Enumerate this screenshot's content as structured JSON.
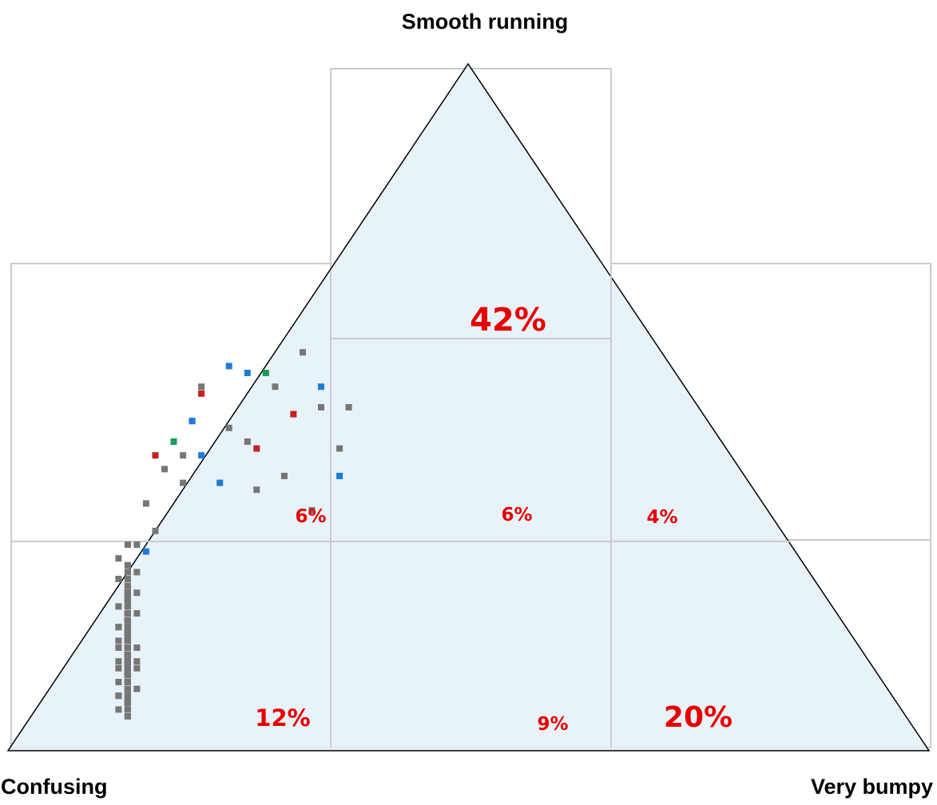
{
  "chart_data": {
    "type": "scatter",
    "subtype": "ternary",
    "corners": {
      "top": "Smooth running",
      "left": "Confusing",
      "right": "Very bumpy"
    },
    "region_percentages": {
      "top": "42%",
      "middle_left": "6%",
      "middle_center": "6%",
      "middle_right": "4%",
      "bottom_left": "12%",
      "bottom_center": "9%",
      "bottom_right": "20%"
    },
    "point_categories": [
      "gray",
      "blue",
      "red",
      "green"
    ],
    "colors": {
      "triangle_fill": "#e4f0f8",
      "triangle_stroke": "#000000",
      "grid": "#c6ccd2",
      "gray": "#767676",
      "blue": "#1e7bd8",
      "red": "#c81e1e",
      "green": "#1a9a55",
      "percent_text": "#e60000"
    },
    "points": [
      {
        "x": 0.13,
        "y": 0.74,
        "c": "gray"
      },
      {
        "x": 0.13,
        "y": 0.81,
        "c": "gray"
      },
      {
        "x": 0.13,
        "y": 0.92,
        "c": "gray"
      },
      {
        "x": 0.13,
        "y": 0.92,
        "c": "gray"
      },
      {
        "x": 0.13,
        "y": 0.89,
        "c": "gray"
      },
      {
        "x": 0.13,
        "y": 0.77,
        "c": "gray"
      },
      {
        "x": 0.13,
        "y": 0.8,
        "c": "gray"
      },
      {
        "x": 0.13,
        "y": 0.8,
        "c": "gray"
      },
      {
        "x": 0.13,
        "y": 0.95,
        "c": "gray"
      },
      {
        "x": 0.13,
        "y": 0.79,
        "c": "gray"
      },
      {
        "x": 0.13,
        "y": 0.84,
        "c": "gray"
      },
      {
        "x": 0.12,
        "y": 0.88,
        "c": "gray"
      },
      {
        "x": 0.13,
        "y": 0.9,
        "c": "gray"
      },
      {
        "x": 0.14,
        "y": 0.87,
        "c": "gray"
      },
      {
        "x": 0.13,
        "y": 0.77,
        "c": "gray"
      },
      {
        "x": 0.13,
        "y": 0.93,
        "c": "gray"
      },
      {
        "x": 0.13,
        "y": 0.78,
        "c": "gray"
      },
      {
        "x": 0.13,
        "y": 0.87,
        "c": "gray"
      },
      {
        "x": 0.13,
        "y": 0.9,
        "c": "gray"
      },
      {
        "x": 0.13,
        "y": 0.73,
        "c": "gray"
      },
      {
        "x": 0.13,
        "y": 0.93,
        "c": "gray"
      },
      {
        "x": 0.13,
        "y": 0.85,
        "c": "gray"
      },
      {
        "x": 0.12,
        "y": 0.92,
        "c": "gray"
      },
      {
        "x": 0.13,
        "y": 0.78,
        "c": "gray"
      },
      {
        "x": 0.13,
        "y": 0.92,
        "c": "gray"
      },
      {
        "x": 0.13,
        "y": 0.76,
        "c": "gray"
      },
      {
        "x": 0.13,
        "y": 0.8,
        "c": "gray"
      },
      {
        "x": 0.13,
        "y": 0.94,
        "c": "gray"
      },
      {
        "x": 0.12,
        "y": 0.79,
        "c": "gray"
      },
      {
        "x": 0.13,
        "y": 0.83,
        "c": "gray"
      },
      {
        "x": 0.13,
        "y": 0.94,
        "c": "gray"
      },
      {
        "x": 0.13,
        "y": 0.86,
        "c": "gray"
      },
      {
        "x": 0.13,
        "y": 0.84,
        "c": "gray"
      },
      {
        "x": 0.13,
        "y": 0.93,
        "c": "gray"
      },
      {
        "x": 0.13,
        "y": 0.86,
        "c": "gray"
      },
      {
        "x": 0.13,
        "y": 0.81,
        "c": "gray"
      },
      {
        "x": 0.13,
        "y": 0.78,
        "c": "gray"
      },
      {
        "x": 0.13,
        "y": 0.91,
        "c": "gray"
      },
      {
        "x": 0.13,
        "y": 0.82,
        "c": "gray"
      },
      {
        "x": 0.12,
        "y": 0.9,
        "c": "gray"
      },
      {
        "x": 0.13,
        "y": 0.86,
        "c": "gray"
      },
      {
        "x": 0.14,
        "y": 0.77,
        "c": "gray"
      },
      {
        "x": 0.13,
        "y": 0.73,
        "c": "gray"
      },
      {
        "x": 0.13,
        "y": 0.83,
        "c": "gray"
      },
      {
        "x": 0.12,
        "y": 0.82,
        "c": "gray"
      },
      {
        "x": 0.13,
        "y": 0.9,
        "c": "gray"
      },
      {
        "x": 0.13,
        "y": 0.85,
        "c": "gray"
      },
      {
        "x": 0.13,
        "y": 0.87,
        "c": "gray"
      },
      {
        "x": 0.13,
        "y": 0.88,
        "c": "gray"
      },
      {
        "x": 0.12,
        "y": 0.84,
        "c": "gray"
      },
      {
        "x": 0.13,
        "y": 0.83,
        "c": "gray"
      },
      {
        "x": 0.13,
        "y": 0.88,
        "c": "gray"
      },
      {
        "x": 0.13,
        "y": 0.76,
        "c": "gray"
      },
      {
        "x": 0.13,
        "y": 0.88,
        "c": "gray"
      },
      {
        "x": 0.13,
        "y": 0.84,
        "c": "gray"
      },
      {
        "x": 0.13,
        "y": 0.88,
        "c": "gray"
      },
      {
        "x": 0.13,
        "y": 0.79,
        "c": "gray"
      },
      {
        "x": 0.13,
        "y": 0.89,
        "c": "gray"
      },
      {
        "x": 0.13,
        "y": 0.77,
        "c": "gray"
      },
      {
        "x": 0.13,
        "y": 0.74,
        "c": "gray"
      },
      {
        "x": 0.13,
        "y": 0.82,
        "c": "gray"
      },
      {
        "x": 0.13,
        "y": 0.82,
        "c": "gray"
      },
      {
        "x": 0.13,
        "y": 0.89,
        "c": "gray"
      },
      {
        "x": 0.13,
        "y": 0.87,
        "c": "gray"
      },
      {
        "x": 0.13,
        "y": 0.94,
        "c": "gray"
      },
      {
        "x": 0.13,
        "y": 0.95,
        "c": "gray"
      },
      {
        "x": 0.13,
        "y": 0.79,
        "c": "gray"
      },
      {
        "x": 0.13,
        "y": 0.88,
        "c": "gray"
      },
      {
        "x": 0.13,
        "y": 0.85,
        "c": "gray"
      },
      {
        "x": 0.13,
        "y": 0.84,
        "c": "gray"
      },
      {
        "x": 0.13,
        "y": 0.78,
        "c": "gray"
      },
      {
        "x": 0.13,
        "y": 0.78,
        "c": "gray"
      },
      {
        "x": 0.13,
        "y": 0.94,
        "c": "gray"
      },
      {
        "x": 0.12,
        "y": 0.85,
        "c": "gray"
      },
      {
        "x": 0.13,
        "y": 0.88,
        "c": "gray"
      },
      {
        "x": 0.13,
        "y": 0.81,
        "c": "gray"
      },
      {
        "x": 0.13,
        "y": 0.76,
        "c": "gray"
      },
      {
        "x": 0.13,
        "y": 0.86,
        "c": "gray"
      },
      {
        "x": 0.13,
        "y": 0.81,
        "c": "gray"
      },
      {
        "x": 0.13,
        "y": 0.88,
        "c": "gray"
      },
      {
        "x": 0.13,
        "y": 0.8,
        "c": "gray"
      },
      {
        "x": 0.13,
        "y": 0.85,
        "c": "gray"
      },
      {
        "x": 0.13,
        "y": 0.92,
        "c": "gray"
      },
      {
        "x": 0.13,
        "y": 0.84,
        "c": "gray"
      },
      {
        "x": 0.13,
        "y": 0.83,
        "c": "gray"
      },
      {
        "x": 0.13,
        "y": 0.91,
        "c": "gray"
      },
      {
        "x": 0.12,
        "y": 0.82,
        "c": "gray"
      },
      {
        "x": 0.13,
        "y": 0.79,
        "c": "gray"
      },
      {
        "x": 0.13,
        "y": 0.83,
        "c": "gray"
      },
      {
        "x": 0.13,
        "y": 0.81,
        "c": "gray"
      },
      {
        "x": 0.13,
        "y": 0.92,
        "c": "gray"
      },
      {
        "x": 0.13,
        "y": 0.8,
        "c": "gray"
      },
      {
        "x": 0.13,
        "y": 0.93,
        "c": "gray"
      },
      {
        "x": 0.13,
        "y": 0.89,
        "c": "gray"
      },
      {
        "x": 0.13,
        "y": 0.87,
        "c": "gray"
      },
      {
        "x": 0.13,
        "y": 0.86,
        "c": "gray"
      },
      {
        "x": 0.13,
        "y": 0.9,
        "c": "gray"
      },
      {
        "x": 0.13,
        "y": 0.86,
        "c": "gray"
      },
      {
        "x": 0.14,
        "y": 0.88,
        "c": "gray"
      },
      {
        "x": 0.13,
        "y": 0.75,
        "c": "gray"
      },
      {
        "x": 0.13,
        "y": 0.83,
        "c": "gray"
      },
      {
        "x": 0.12,
        "y": 0.87,
        "c": "gray"
      },
      {
        "x": 0.13,
        "y": 0.81,
        "c": "gray"
      },
      {
        "x": 0.14,
        "y": 0.91,
        "c": "gray"
      },
      {
        "x": 0.13,
        "y": 0.79,
        "c": "gray"
      },
      {
        "x": 0.13,
        "y": 0.93,
        "c": "gray"
      },
      {
        "x": 0.13,
        "y": 0.84,
        "c": "gray"
      },
      {
        "x": 0.13,
        "y": 0.89,
        "c": "gray"
      },
      {
        "x": 0.13,
        "y": 0.77,
        "c": "gray"
      },
      {
        "x": 0.13,
        "y": 0.86,
        "c": "gray"
      },
      {
        "x": 0.13,
        "y": 0.84,
        "c": "gray"
      },
      {
        "x": 0.12,
        "y": 0.92,
        "c": "gray"
      },
      {
        "x": 0.13,
        "y": 0.84,
        "c": "gray"
      },
      {
        "x": 0.13,
        "y": 0.91,
        "c": "gray"
      },
      {
        "x": 0.13,
        "y": 0.78,
        "c": "gray"
      },
      {
        "x": 0.13,
        "y": 0.81,
        "c": "gray"
      },
      {
        "x": 0.13,
        "y": 0.88,
        "c": "gray"
      },
      {
        "x": 0.13,
        "y": 0.76,
        "c": "gray"
      },
      {
        "x": 0.13,
        "y": 0.91,
        "c": "gray"
      },
      {
        "x": 0.13,
        "y": 0.85,
        "c": "gray"
      },
      {
        "x": 0.13,
        "y": 0.86,
        "c": "gray"
      },
      {
        "x": 0.13,
        "y": 0.92,
        "c": "gray"
      },
      {
        "x": 0.13,
        "y": 0.93,
        "c": "gray"
      },
      {
        "x": 0.13,
        "y": 0.89,
        "c": "gray"
      },
      {
        "x": 0.13,
        "y": 0.91,
        "c": "gray"
      },
      {
        "x": 0.13,
        "y": 0.84,
        "c": "gray"
      },
      {
        "x": 0.13,
        "y": 0.79,
        "c": "gray"
      },
      {
        "x": 0.13,
        "y": 0.9,
        "c": "gray"
      },
      {
        "x": 0.14,
        "y": 0.74,
        "c": "gray"
      },
      {
        "x": 0.13,
        "y": 0.83,
        "c": "gray"
      },
      {
        "x": 0.13,
        "y": 0.83,
        "c": "gray"
      },
      {
        "x": 0.13,
        "y": 0.8,
        "c": "gray"
      },
      {
        "x": 0.13,
        "y": 0.77,
        "c": "gray"
      },
      {
        "x": 0.13,
        "y": 0.88,
        "c": "gray"
      },
      {
        "x": 0.13,
        "y": 0.85,
        "c": "gray"
      },
      {
        "x": 0.13,
        "y": 0.91,
        "c": "gray"
      },
      {
        "x": 0.13,
        "y": 0.86,
        "c": "gray"
      },
      {
        "x": 0.13,
        "y": 0.95,
        "c": "gray"
      },
      {
        "x": 0.13,
        "y": 0.93,
        "c": "gray"
      },
      {
        "x": 0.12,
        "y": 0.94,
        "c": "gray"
      },
      {
        "x": 0.13,
        "y": 0.89,
        "c": "gray"
      },
      {
        "x": 0.13,
        "y": 0.93,
        "c": "gray"
      },
      {
        "x": 0.14,
        "y": 0.8,
        "c": "gray"
      },
      {
        "x": 0.13,
        "y": 0.8,
        "c": "gray"
      },
      {
        "x": 0.13,
        "y": 0.87,
        "c": "gray"
      },
      {
        "x": 0.13,
        "y": 0.77,
        "c": "gray"
      },
      {
        "x": 0.13,
        "y": 0.83,
        "c": "gray"
      },
      {
        "x": 0.13,
        "y": 0.82,
        "c": "gray"
      },
      {
        "x": 0.13,
        "y": 0.78,
        "c": "gray"
      },
      {
        "x": 0.12,
        "y": 0.75,
        "c": "gray"
      },
      {
        "x": 0.13,
        "y": 0.89,
        "c": "gray"
      },
      {
        "x": 0.13,
        "y": 0.85,
        "c": "gray"
      },
      {
        "x": 0.13,
        "y": 0.81,
        "c": "gray"
      },
      {
        "x": 0.13,
        "y": 0.92,
        "c": "gray"
      },
      {
        "x": 0.13,
        "y": 0.83,
        "c": "gray"
      },
      {
        "x": 0.13,
        "y": 0.85,
        "c": "gray"
      },
      {
        "x": 0.13,
        "y": 0.86,
        "c": "gray"
      },
      {
        "x": 0.13,
        "y": 0.87,
        "c": "gray"
      },
      {
        "x": 0.13,
        "y": 0.89,
        "c": "gray"
      },
      {
        "x": 0.14,
        "y": 0.85,
        "c": "gray"
      },
      {
        "x": 0.13,
        "y": 0.9,
        "c": "gray"
      },
      {
        "x": 0.13,
        "y": 0.82,
        "c": "gray"
      },
      {
        "x": 0.13,
        "y": 0.84,
        "c": "gray"
      },
      {
        "x": 0.13,
        "y": 0.86,
        "c": "gray"
      },
      {
        "x": 0.13,
        "y": 0.91,
        "c": "gray"
      },
      {
        "x": 0.13,
        "y": 0.87,
        "c": "gray"
      },
      {
        "x": 0.13,
        "y": 0.88,
        "c": "gray"
      },
      {
        "x": 0.13,
        "y": 0.82,
        "c": "gray"
      },
      {
        "x": 0.13,
        "y": 0.8,
        "c": "gray"
      },
      {
        "x": 0.13,
        "y": 0.9,
        "c": "gray"
      },
      {
        "x": 0.13,
        "y": 0.86,
        "c": "gray"
      },
      {
        "x": 0.13,
        "y": 0.84,
        "c": "gray"
      },
      {
        "x": 0.13,
        "y": 0.83,
        "c": "gray"
      },
      {
        "x": 0.13,
        "y": 0.86,
        "c": "gray"
      },
      {
        "x": 0.13,
        "y": 0.9,
        "c": "gray"
      },
      {
        "x": 0.13,
        "y": 0.88,
        "c": "gray"
      },
      {
        "x": 0.13,
        "y": 0.84,
        "c": "gray"
      },
      {
        "x": 0.13,
        "y": 0.82,
        "c": "gray"
      },
      {
        "x": 0.13,
        "y": 0.89,
        "c": "gray"
      },
      {
        "x": 0.13,
        "y": 0.85,
        "c": "gray"
      },
      {
        "x": 0.13,
        "y": 0.86,
        "c": "gray"
      },
      {
        "x": 0.13,
        "y": 0.87,
        "c": "gray"
      },
      {
        "x": 0.13,
        "y": 0.82,
        "c": "gray"
      },
      {
        "x": 0.13,
        "y": 0.81,
        "c": "gray"
      },
      {
        "x": 0.13,
        "y": 0.89,
        "c": "gray"
      },
      {
        "x": 0.13,
        "y": 0.85,
        "c": "gray"
      },
      {
        "x": 0.13,
        "y": 0.83,
        "c": "gray"
      },
      {
        "x": 0.13,
        "y": 0.87,
        "c": "gray"
      },
      {
        "x": 0.13,
        "y": 0.86,
        "c": "gray"
      },
      {
        "x": 0.13,
        "y": 0.84,
        "c": "gray"
      },
      {
        "x": 0.13,
        "y": 0.88,
        "c": "gray"
      },
      {
        "x": 0.13,
        "y": 0.85,
        "c": "gray"
      },
      {
        "x": 0.13,
        "y": 0.86,
        "c": "gray"
      },
      {
        "x": 0.13,
        "y": 0.84,
        "c": "gray"
      },
      {
        "x": 0.13,
        "y": 0.87,
        "c": "gray"
      },
      {
        "x": 0.13,
        "y": 0.82,
        "c": "gray"
      },
      {
        "x": 0.13,
        "y": 0.9,
        "c": "gray"
      },
      {
        "x": 0.13,
        "y": 0.83,
        "c": "gray"
      },
      {
        "x": 0.13,
        "y": 0.88,
        "c": "gray"
      },
      {
        "x": 0.13,
        "y": 0.85,
        "c": "gray"
      },
      {
        "x": 0.2,
        "y": 0.52,
        "c": "gray"
      },
      {
        "x": 0.32,
        "y": 0.42,
        "c": "gray"
      },
      {
        "x": 0.15,
        "y": 0.64,
        "c": "gray"
      },
      {
        "x": 0.34,
        "y": 0.5,
        "c": "gray"
      },
      {
        "x": 0.21,
        "y": 0.47,
        "c": "gray"
      },
      {
        "x": 0.17,
        "y": 0.59,
        "c": "gray"
      },
      {
        "x": 0.14,
        "y": 0.7,
        "c": "gray"
      },
      {
        "x": 0.3,
        "y": 0.6,
        "c": "gray"
      },
      {
        "x": 0.19,
        "y": 0.61,
        "c": "gray"
      },
      {
        "x": 0.24,
        "y": 0.53,
        "c": "gray"
      },
      {
        "x": 0.33,
        "y": 0.65,
        "c": "gray"
      },
      {
        "x": 0.37,
        "y": 0.5,
        "c": "gray"
      },
      {
        "x": 0.13,
        "y": 0.7,
        "c": "gray"
      },
      {
        "x": 0.12,
        "y": 0.72,
        "c": "gray"
      },
      {
        "x": 0.16,
        "y": 0.68,
        "c": "gray"
      },
      {
        "x": 0.19,
        "y": 0.57,
        "c": "gray"
      },
      {
        "x": 0.26,
        "y": 0.55,
        "c": "gray"
      },
      {
        "x": 0.29,
        "y": 0.47,
        "c": "gray"
      },
      {
        "x": 0.27,
        "y": 0.62,
        "c": "gray"
      },
      {
        "x": 0.36,
        "y": 0.56,
        "c": "gray"
      },
      {
        "x": 0.2,
        "y": 0.52,
        "c": "blue"
      },
      {
        "x": 0.26,
        "y": 0.45,
        "c": "blue"
      },
      {
        "x": 0.21,
        "y": 0.57,
        "c": "blue"
      },
      {
        "x": 0.24,
        "y": 0.44,
        "c": "blue"
      },
      {
        "x": 0.34,
        "y": 0.47,
        "c": "blue"
      },
      {
        "x": 0.15,
        "y": 0.71,
        "c": "blue"
      },
      {
        "x": 0.36,
        "y": 0.6,
        "c": "blue"
      },
      {
        "x": 0.23,
        "y": 0.61,
        "c": "blue"
      },
      {
        "x": 0.16,
        "y": 0.57,
        "c": "red"
      },
      {
        "x": 0.21,
        "y": 0.48,
        "c": "red"
      },
      {
        "x": 0.27,
        "y": 0.56,
        "c": "red"
      },
      {
        "x": 0.31,
        "y": 0.51,
        "c": "red"
      },
      {
        "x": 0.18,
        "y": 0.55,
        "c": "green"
      },
      {
        "x": 0.28,
        "y": 0.45,
        "c": "green"
      }
    ]
  }
}
